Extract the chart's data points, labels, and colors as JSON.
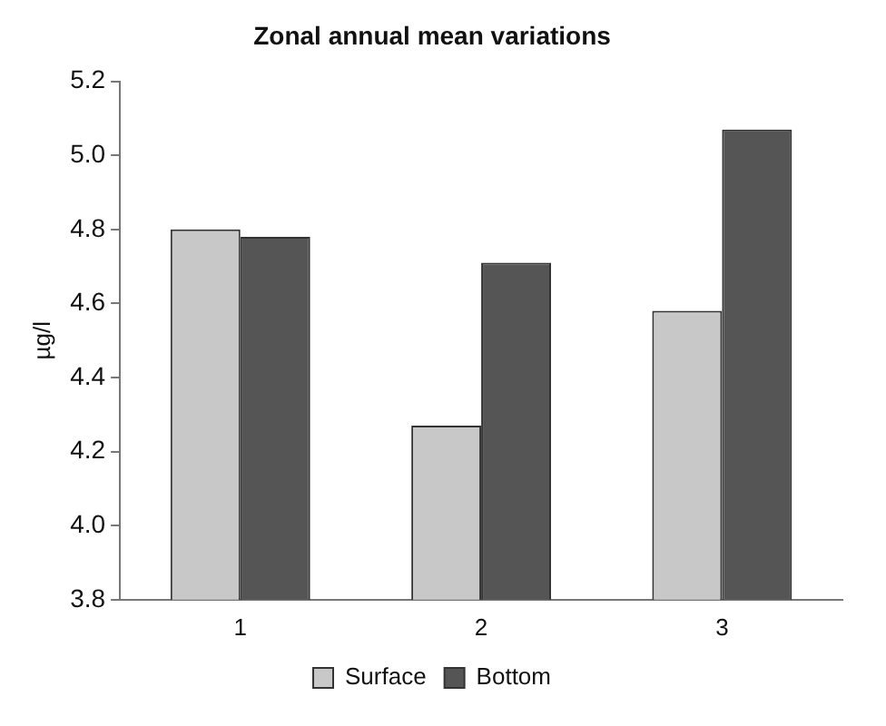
{
  "chart_data": {
    "type": "bar",
    "title": "Zonal annual mean variations",
    "ylabel": "µg/l",
    "categories": [
      "1",
      "2",
      "3"
    ],
    "series": [
      {
        "name": "Surface",
        "color": "#c8c8c8",
        "values": [
          4.8,
          4.27,
          4.58
        ]
      },
      {
        "name": "Bottom",
        "color": "#555555",
        "values": [
          4.78,
          4.71,
          5.07
        ]
      }
    ],
    "ylim": [
      3.8,
      5.2
    ],
    "yticks": [
      3.8,
      {
        "value": 4,
        "label": "4.0"
      },
      4.2,
      4.4,
      4.6,
      4.8,
      {
        "value": 5,
        "label": "5.0"
      },
      5.2
    ],
    "grid": false,
    "legend": "bottom"
  }
}
